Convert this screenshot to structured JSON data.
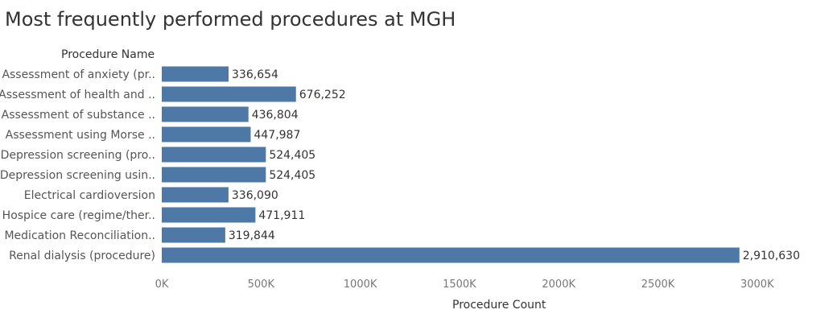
{
  "chart_data": {
    "type": "bar",
    "orientation": "horizontal",
    "title": "Most frequently performed procedures at MGH",
    "row_header": "Procedure Name",
    "xlabel": "Procedure Count",
    "ylabel": "",
    "categories": [
      "Assessment of anxiety (pr..",
      "Assessment of health and ..",
      "Assessment of substance ..",
      "Assessment using Morse ..",
      "Depression screening (pro..",
      "Depression screening usin..",
      "Electrical cardioversion",
      "Hospice care (regime/ther..",
      "Medication Reconciliation..",
      "Renal dialysis (procedure)"
    ],
    "values": [
      336654,
      676252,
      436804,
      447987,
      524405,
      524405,
      336090,
      471911,
      319844,
      2910630
    ],
    "value_labels": [
      "336,654",
      "676,252",
      "436,804",
      "447,987",
      "524,405",
      "524,405",
      "336,090",
      "471,911",
      "319,844",
      "2,910,630"
    ],
    "xlim": [
      0,
      3300000
    ],
    "x_ticks": [
      0,
      500000,
      1000000,
      1500000,
      2000000,
      2500000,
      3000000
    ],
    "x_tick_labels": [
      "0K",
      "500K",
      "1000K",
      "1500K",
      "2000K",
      "2500K",
      "3000K"
    ],
    "grid": false,
    "bar_color": "#4e79a7"
  }
}
